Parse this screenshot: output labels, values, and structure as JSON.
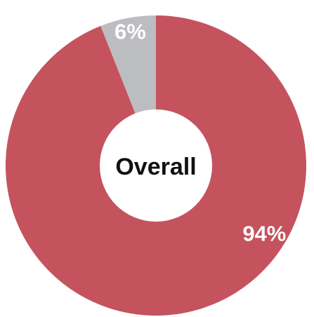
{
  "chart_data": {
    "type": "pie",
    "donut": true,
    "center_label": "Overall",
    "slices": [
      {
        "label": "94%",
        "value": 94,
        "color": "#c4535d",
        "label_color": "#ffffff"
      },
      {
        "label": "6%",
        "value": 6,
        "color": "#bcbdc1",
        "label_color": "#ffffff"
      }
    ],
    "start": "top",
    "direction": "clockwise",
    "legend": "none"
  }
}
